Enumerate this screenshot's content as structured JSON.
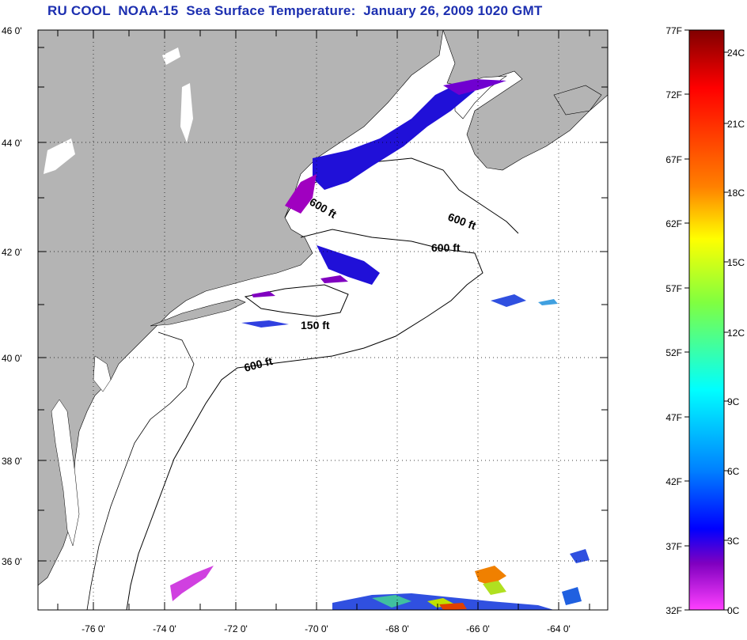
{
  "title": "RU COOL  NOAA-15  Sea Surface Temperature:  January 26, 2009 1020 GMT",
  "map": {
    "lat_ticks": [
      "46 0'",
      "44 0'",
      "42 0'",
      "40 0'",
      "38 0'",
      "36 0'"
    ],
    "lon_ticks": [
      "-76 0'",
      "-74 0'",
      "-72 0'",
      "-70 0'",
      "-68 0'",
      "-66 0'",
      "-64 0'"
    ],
    "lat_range": [
      35,
      46
    ],
    "lon_range": [
      -77,
      -63
    ],
    "land_color": "#b4b4b4",
    "ocean_color": "#ffffff",
    "contour_labels": [
      "600 ft",
      "600 ft",
      "600 ft",
      "150 ft",
      "600 ft"
    ]
  },
  "colorbar": {
    "f_labels": [
      "77F",
      "72F",
      "67F",
      "62F",
      "57F",
      "52F",
      "47F",
      "42F",
      "37F",
      "32F"
    ],
    "c_labels": [
      "24C",
      "21C",
      "18C",
      "15C",
      "12C",
      "9C",
      "6C",
      "3C",
      "0C"
    ],
    "gradient_top_to_bottom": [
      "#800000",
      "#ff0000",
      "#ff8000",
      "#ffff00",
      "#80ff40",
      "#00ffff",
      "#0080ff",
      "#0000ff",
      "#8000c0",
      "#ff40ff"
    ]
  }
}
